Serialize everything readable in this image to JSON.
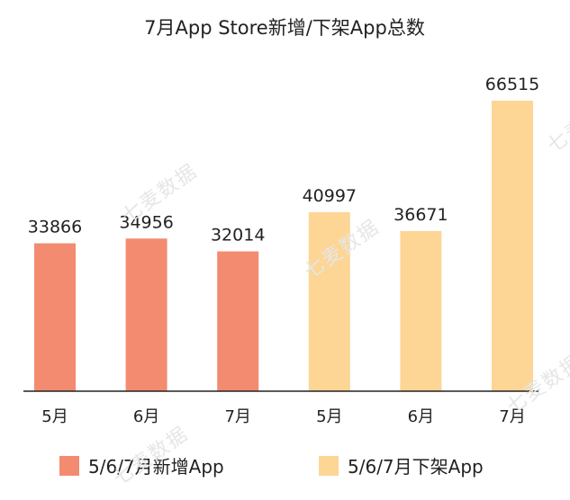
{
  "chart_data": {
    "type": "bar",
    "title": "7月App Store新增/下架App总数",
    "categories": [
      "5月",
      "6月",
      "7月",
      "5月",
      "6月",
      "7月"
    ],
    "series": [
      {
        "name": "5/6/7月新增App",
        "color": "#f28b70",
        "values": [
          33866,
          34956,
          32014,
          null,
          null,
          null
        ]
      },
      {
        "name": "5/6/7月下架App",
        "color": "#fdd595",
        "values": [
          null,
          null,
          null,
          40997,
          36671,
          66515
        ]
      }
    ],
    "ylim": [
      0,
      66515
    ],
    "grid": false,
    "legend_position": "bottom"
  },
  "watermark": "七麦数据"
}
